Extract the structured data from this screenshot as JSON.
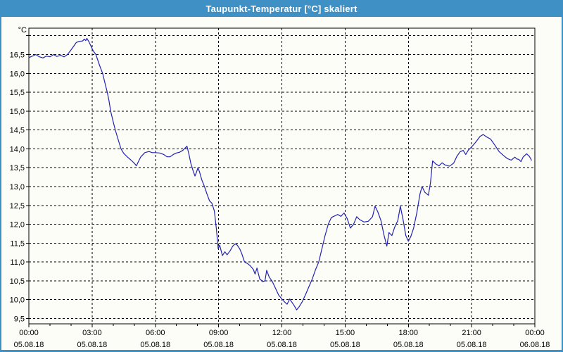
{
  "window": {
    "title": "Taupunkt-Temperatur [°C] skaliert",
    "titlebar_color": "#3f90c5",
    "border_color": "#3f90c5",
    "background_color": "#fdfdf7"
  },
  "chart_data": {
    "type": "line",
    "title": "Taupunkt-Temperatur [°C] skaliert",
    "unit_label": "°C",
    "grid": "dashed",
    "legend": "none",
    "x_axis": {
      "unit": "hours",
      "start_hour": 0,
      "end_hour": 24,
      "major_tick_hours": 3,
      "minor_tick_hours": 1,
      "major_labels": [
        {
          "time": "00:00",
          "date": "05.08.18"
        },
        {
          "time": "03:00",
          "date": "05.08.18"
        },
        {
          "time": "06:00",
          "date": "05.08.18"
        },
        {
          "time": "09:00",
          "date": "05.08.18"
        },
        {
          "time": "12:00",
          "date": "05.08.18"
        },
        {
          "time": "15:00",
          "date": "05.08.18"
        },
        {
          "time": "18:00",
          "date": "05.08.18"
        },
        {
          "time": "21:00",
          "date": "05.08.18"
        },
        {
          "time": "00:00",
          "date": "06.08.18"
        }
      ]
    },
    "y_axis": {
      "render_min": 9.36,
      "render_max": 17.2,
      "grid_min": 9.5,
      "grid_max": 17.0,
      "grid_step": 0.5,
      "labeled_min": 9.5,
      "labeled_max": 16.5,
      "decimal_separator": ","
    },
    "series": [
      {
        "name": "Taupunkt-Temperatur",
        "color": "#2222b2",
        "points": [
          [
            0.0,
            16.42
          ],
          [
            0.17,
            16.46
          ],
          [
            0.33,
            16.5
          ],
          [
            0.5,
            16.44
          ],
          [
            0.67,
            16.41
          ],
          [
            0.83,
            16.46
          ],
          [
            1.0,
            16.44
          ],
          [
            1.17,
            16.5
          ],
          [
            1.33,
            16.45
          ],
          [
            1.5,
            16.48
          ],
          [
            1.67,
            16.44
          ],
          [
            1.83,
            16.5
          ],
          [
            1.97,
            16.6
          ],
          [
            2.1,
            16.7
          ],
          [
            2.25,
            16.82
          ],
          [
            2.4,
            16.85
          ],
          [
            2.55,
            16.86
          ],
          [
            2.63,
            16.91
          ],
          [
            2.7,
            16.87
          ],
          [
            2.75,
            16.93
          ],
          [
            2.85,
            16.84
          ],
          [
            2.95,
            16.72
          ],
          [
            3.05,
            16.6
          ],
          [
            3.18,
            16.5
          ],
          [
            3.35,
            16.22
          ],
          [
            3.5,
            16.0
          ],
          [
            3.62,
            15.72
          ],
          [
            3.72,
            15.5
          ],
          [
            3.8,
            15.28
          ],
          [
            3.88,
            15.0
          ],
          [
            4.0,
            14.72
          ],
          [
            4.1,
            14.5
          ],
          [
            4.25,
            14.22
          ],
          [
            4.37,
            14.0
          ],
          [
            4.5,
            13.88
          ],
          [
            4.68,
            13.78
          ],
          [
            4.85,
            13.7
          ],
          [
            5.0,
            13.62
          ],
          [
            5.1,
            13.55
          ],
          [
            5.3,
            13.78
          ],
          [
            5.5,
            13.9
          ],
          [
            5.7,
            13.93
          ],
          [
            5.85,
            13.9
          ],
          [
            6.0,
            13.9
          ],
          [
            6.2,
            13.89
          ],
          [
            6.4,
            13.85
          ],
          [
            6.55,
            13.79
          ],
          [
            6.7,
            13.79
          ],
          [
            6.85,
            13.85
          ],
          [
            7.0,
            13.89
          ],
          [
            7.15,
            13.91
          ],
          [
            7.3,
            13.96
          ],
          [
            7.5,
            14.07
          ],
          [
            7.6,
            13.84
          ],
          [
            7.68,
            13.62
          ],
          [
            7.8,
            13.4
          ],
          [
            7.88,
            13.28
          ],
          [
            7.95,
            13.38
          ],
          [
            8.02,
            13.5
          ],
          [
            8.1,
            13.38
          ],
          [
            8.2,
            13.18
          ],
          [
            8.33,
            13.0
          ],
          [
            8.45,
            12.8
          ],
          [
            8.57,
            12.62
          ],
          [
            8.68,
            12.56
          ],
          [
            8.8,
            12.35
          ],
          [
            8.9,
            11.85
          ],
          [
            8.98,
            11.35
          ],
          [
            9.05,
            11.45
          ],
          [
            9.18,
            11.17
          ],
          [
            9.3,
            11.27
          ],
          [
            9.4,
            11.19
          ],
          [
            9.55,
            11.3
          ],
          [
            9.67,
            11.42
          ],
          [
            9.78,
            11.48
          ],
          [
            9.88,
            11.45
          ],
          [
            10.0,
            11.35
          ],
          [
            10.1,
            11.22
          ],
          [
            10.23,
            11.0
          ],
          [
            10.37,
            10.96
          ],
          [
            10.5,
            10.9
          ],
          [
            10.65,
            10.8
          ],
          [
            10.73,
            10.68
          ],
          [
            10.82,
            10.84
          ],
          [
            10.95,
            10.55
          ],
          [
            11.1,
            10.48
          ],
          [
            11.2,
            10.5
          ],
          [
            11.28,
            10.78
          ],
          [
            11.4,
            10.6
          ],
          [
            11.55,
            10.48
          ],
          [
            11.7,
            10.3
          ],
          [
            11.85,
            10.12
          ],
          [
            12.0,
            10.02
          ],
          [
            12.13,
            9.94
          ],
          [
            12.25,
            9.88
          ],
          [
            12.37,
            10.02
          ],
          [
            12.48,
            9.93
          ],
          [
            12.6,
            9.83
          ],
          [
            12.7,
            9.73
          ],
          [
            12.83,
            9.82
          ],
          [
            12.97,
            9.95
          ],
          [
            13.12,
            10.13
          ],
          [
            13.28,
            10.34
          ],
          [
            13.45,
            10.56
          ],
          [
            13.6,
            10.8
          ],
          [
            13.75,
            11.0
          ],
          [
            13.9,
            11.35
          ],
          [
            14.05,
            11.7
          ],
          [
            14.2,
            12.0
          ],
          [
            14.35,
            12.18
          ],
          [
            14.5,
            12.22
          ],
          [
            14.65,
            12.26
          ],
          [
            14.8,
            12.21
          ],
          [
            14.95,
            12.3
          ],
          [
            15.1,
            12.15
          ],
          [
            15.25,
            11.9
          ],
          [
            15.4,
            12.0
          ],
          [
            15.55,
            12.2
          ],
          [
            15.7,
            12.12
          ],
          [
            15.9,
            12.06
          ],
          [
            16.1,
            12.08
          ],
          [
            16.3,
            12.2
          ],
          [
            16.42,
            12.48
          ],
          [
            16.55,
            12.33
          ],
          [
            16.7,
            12.1
          ],
          [
            16.85,
            11.7
          ],
          [
            16.98,
            11.42
          ],
          [
            17.08,
            11.78
          ],
          [
            17.22,
            11.7
          ],
          [
            17.35,
            11.92
          ],
          [
            17.5,
            12.1
          ],
          [
            17.62,
            12.48
          ],
          [
            17.75,
            12.12
          ],
          [
            17.88,
            11.7
          ],
          [
            18.0,
            11.55
          ],
          [
            18.12,
            11.68
          ],
          [
            18.25,
            11.9
          ],
          [
            18.4,
            12.3
          ],
          [
            18.55,
            12.8
          ],
          [
            18.65,
            13.0
          ],
          [
            18.78,
            12.85
          ],
          [
            18.95,
            12.77
          ],
          [
            19.05,
            13.1
          ],
          [
            19.15,
            13.68
          ],
          [
            19.3,
            13.6
          ],
          [
            19.45,
            13.55
          ],
          [
            19.6,
            13.63
          ],
          [
            19.75,
            13.57
          ],
          [
            19.95,
            13.54
          ],
          [
            20.15,
            13.62
          ],
          [
            20.3,
            13.8
          ],
          [
            20.45,
            13.92
          ],
          [
            20.6,
            13.96
          ],
          [
            20.72,
            13.85
          ],
          [
            20.85,
            13.97
          ],
          [
            21.0,
            14.05
          ],
          [
            21.2,
            14.18
          ],
          [
            21.4,
            14.33
          ],
          [
            21.55,
            14.38
          ],
          [
            21.7,
            14.32
          ],
          [
            21.9,
            14.26
          ],
          [
            22.1,
            14.1
          ],
          [
            22.3,
            13.93
          ],
          [
            22.5,
            13.83
          ],
          [
            22.7,
            13.74
          ],
          [
            22.88,
            13.7
          ],
          [
            23.05,
            13.78
          ],
          [
            23.15,
            13.73
          ],
          [
            23.24,
            13.72
          ],
          [
            23.34,
            13.66
          ],
          [
            23.44,
            13.78
          ],
          [
            23.57,
            13.85
          ],
          [
            23.61,
            13.87
          ],
          [
            23.74,
            13.8
          ],
          [
            23.84,
            13.7
          ]
        ]
      }
    ]
  }
}
